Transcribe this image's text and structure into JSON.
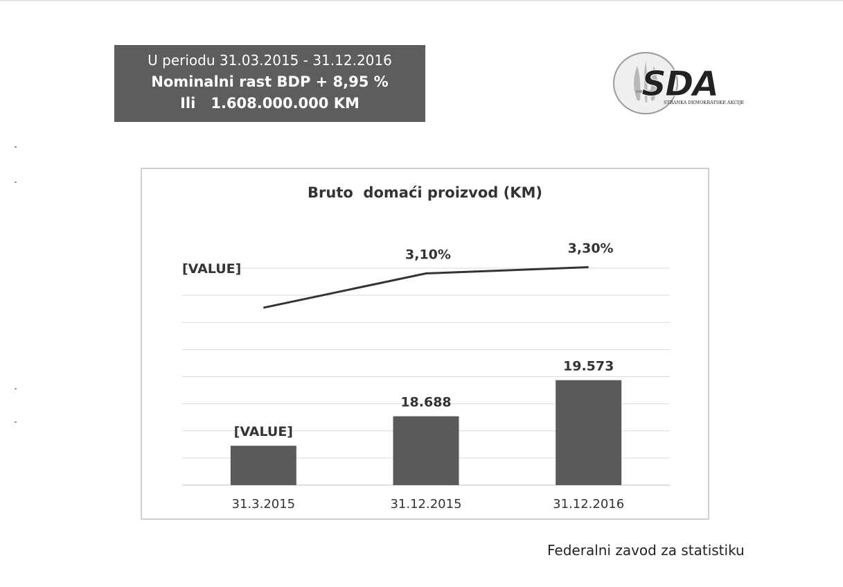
{
  "header": {
    "period_line": "U periodu 31.03.2015 - 31.12.2016",
    "growth_line": "Nominalni rast BDP + 8,95 %",
    "alt_prefix": "Ili",
    "alt_amount": "1.608.000.000 KM"
  },
  "logo": {
    "wordmark": "SDA",
    "subtitle": "STRANKA DEMOKRATSKE AKCIJE",
    "icon": "fleur-de-lis-oval-icon"
  },
  "source_note": "Federalni zavod za statistiku",
  "colors": {
    "header_bg": "#5d5d5d",
    "bar": "#5a5a5a",
    "line": "#333333",
    "gridline": "#d9d9d9",
    "text": "#333333"
  },
  "chart_data": {
    "type": "bar",
    "title": "Bruto  domaći proizvod (KM)",
    "categories": [
      "31.3.2015",
      "31.12.2015",
      "31.12.2016"
    ],
    "series": [
      {
        "type": "bar",
        "values": [
          17965,
          18688,
          19573
        ],
        "labels": [
          "[VALUE]",
          "18.688",
          "19.573"
        ]
      },
      {
        "type": "line",
        "values": [
          2.0,
          3.1,
          3.3
        ],
        "labels": [
          "[VALUE]",
          "3,10%",
          "3,30%"
        ]
      }
    ],
    "grid": true,
    "legend": "none"
  }
}
